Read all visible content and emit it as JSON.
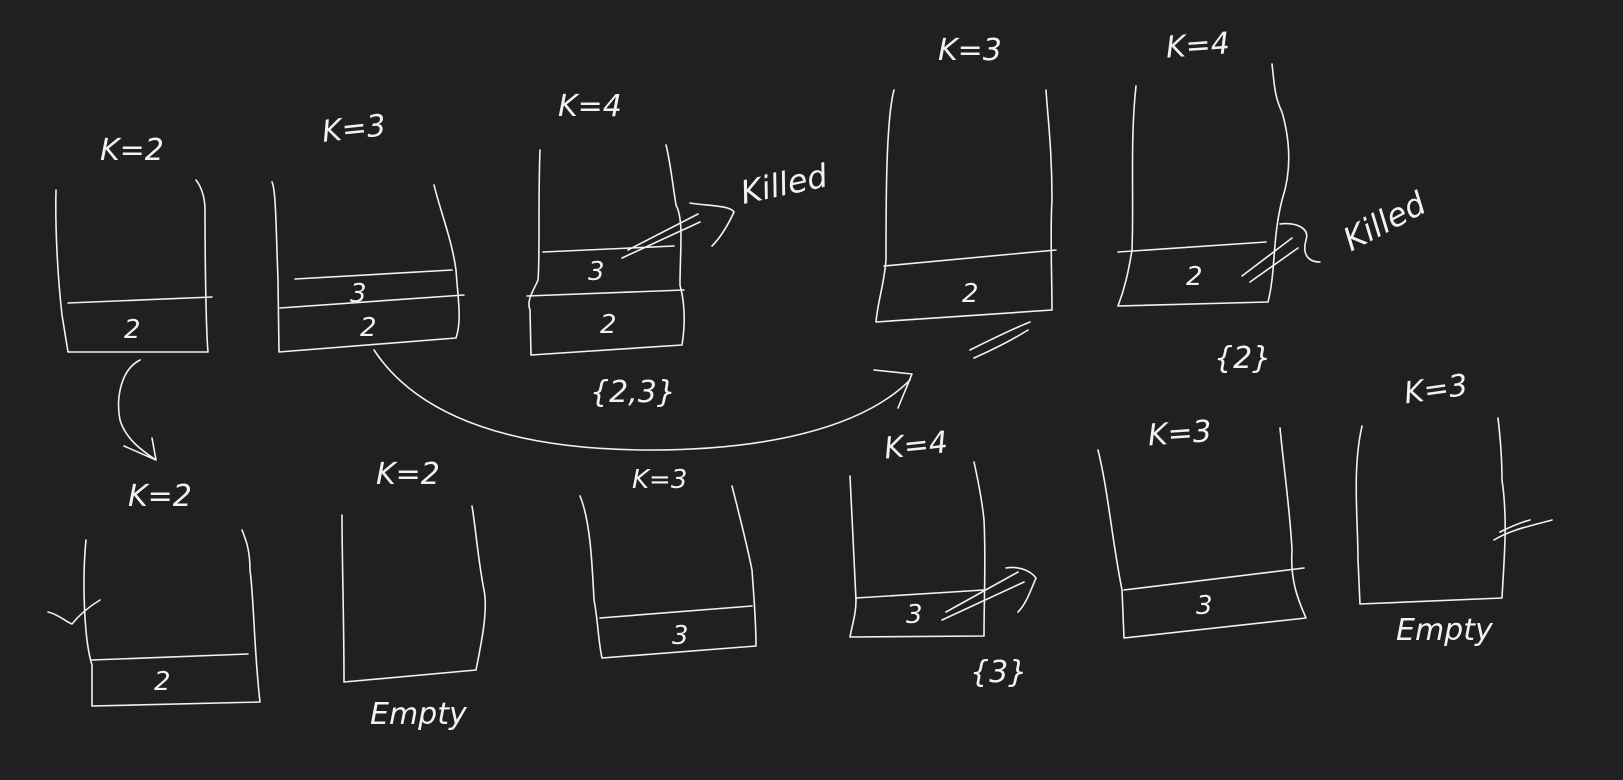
{
  "colors": {
    "background": "#202020",
    "ink": "#f2f2f2"
  },
  "stacks": [
    {
      "label": "K=2",
      "items": [
        "2"
      ]
    },
    {
      "label": "K=3",
      "items": [
        "3",
        "2"
      ]
    },
    {
      "label": "K=4",
      "items": [
        "3",
        "2"
      ],
      "note": "Killed",
      "set": "{2,3}"
    },
    {
      "label": "K=3",
      "items": [
        "2"
      ]
    },
    {
      "label": "K=4",
      "items": [
        "2"
      ],
      "note": "Killed",
      "set": "{2}"
    },
    {
      "label": "K=2",
      "items": [
        "2"
      ]
    },
    {
      "label": "K=2",
      "items": [],
      "caption": "Empty"
    },
    {
      "label": "K=3",
      "items": [
        "3"
      ]
    },
    {
      "label": "K=4",
      "items": [
        "3"
      ],
      "set": "{3}"
    },
    {
      "label": "K=3",
      "items": [
        "3"
      ]
    },
    {
      "label": "K=3",
      "items": [],
      "caption": "Empty"
    }
  ]
}
